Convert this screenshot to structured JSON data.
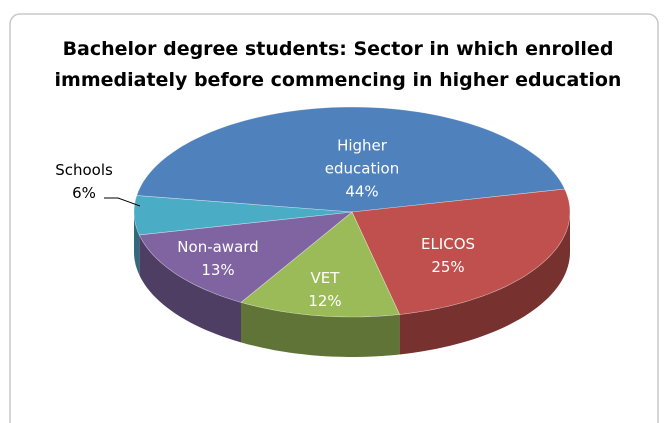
{
  "chart_data": {
    "type": "pie3d",
    "title": [
      "Bachelor degree students: Sector in which enrolled",
      "immediately before commencing in higher education"
    ],
    "categories": [
      "Higher education",
      "ELICOS",
      "VET",
      "Non-award",
      "Schools"
    ],
    "values": [
      44,
      25,
      12,
      13,
      6
    ],
    "value_labels": [
      "44%",
      "25%",
      "12%",
      "13%",
      "6%"
    ],
    "colors": [
      "#4f81bd",
      "#c0504d",
      "#9bbb59",
      "#8064a2",
      "#4bacc6"
    ]
  }
}
